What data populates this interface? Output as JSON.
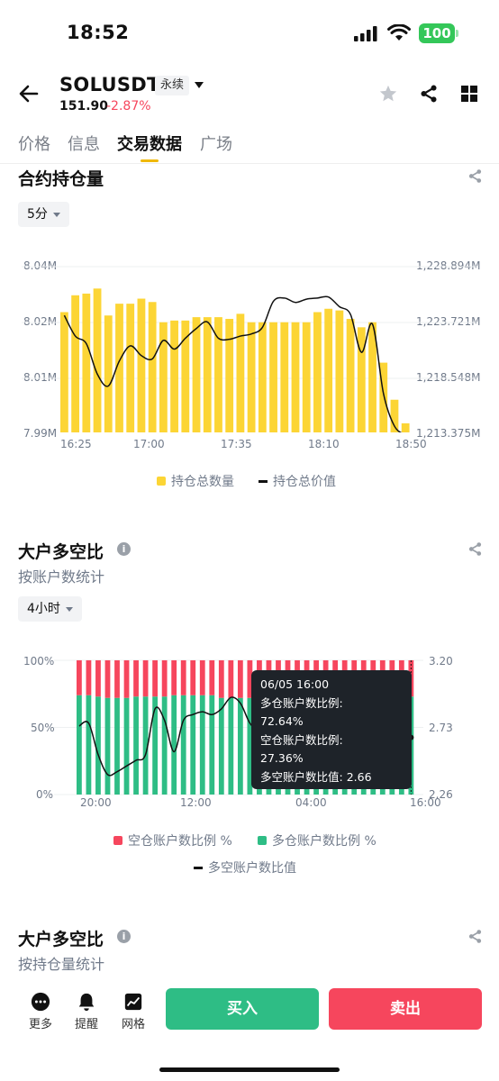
{
  "status": {
    "time": "18:52",
    "battery": "100"
  },
  "header": {
    "symbol": "SOLUSDT",
    "tag": "永续",
    "price": "151.90",
    "change": "-2.87%"
  },
  "tabs": [
    {
      "label": "价格"
    },
    {
      "label": "信息"
    },
    {
      "label": "交易数据",
      "active": true
    },
    {
      "label": "广场"
    }
  ],
  "open_interest": {
    "title": "合约持仓量",
    "interval": "5分",
    "legend": {
      "quantity": "持仓总数量",
      "value": "持仓总价值"
    }
  },
  "top_trader_accounts": {
    "title": "大户多空比",
    "subtitle": "按账户数统计",
    "interval": "4小时",
    "legend": {
      "short": "空仓账户数比例 %",
      "long": "多仓账户数比例 %",
      "ratio": "多空账户数比值"
    },
    "tooltip": {
      "date": "06/05 16:00",
      "long_label": "多仓账户数比例:",
      "long_value": "72.64%",
      "short_label": "空仓账户数比例:",
      "short_value": "27.36%",
      "ratio_label": "多空账户数比值:",
      "ratio_value": "2.66"
    }
  },
  "top_trader_positions": {
    "title": "大户多空比",
    "subtitle": "按持仓量统计"
  },
  "bottom": {
    "more": "更多",
    "alert": "提醒",
    "grid": "网格",
    "buy": "买入",
    "sell": "卖出"
  },
  "colors": {
    "accent": "#f0b90b",
    "bar": "#fcd535",
    "buy": "#2ebd85",
    "sell": "#f6465d",
    "dark": "#1e2329"
  },
  "chart_data": [
    {
      "type": "bar",
      "x_ticks": [
        "16:25",
        "17:00",
        "17:35",
        "18:10",
        "18:50"
      ],
      "y_left_ticks": [
        "8.04M",
        "8.02M",
        "8.01M",
        "7.99M"
      ],
      "y_right_ticks": [
        "1,228.894M",
        "1,223.721M",
        "1,218.548M",
        "1,213.375M"
      ],
      "y_left_range": [
        7.99,
        8.04
      ],
      "y_right_range": [
        1213.375,
        1228.894
      ],
      "series": [
        {
          "name": "持仓总数量",
          "type": "bar",
          "values": [
            8.0265,
            8.0315,
            8.032,
            8.0335,
            8.0255,
            8.029,
            8.029,
            8.0305,
            8.0295,
            8.0235,
            8.024,
            8.024,
            8.025,
            8.025,
            8.025,
            8.0245,
            8.026,
            8.0235,
            8.0235,
            8.0235,
            8.0235,
            8.0235,
            8.0235,
            8.0265,
            8.0275,
            8.027,
            8.0245,
            8.022,
            8.0235,
            8.0115,
            8.0005,
            7.9935
          ]
        },
        {
          "name": "持仓总价值",
          "type": "line",
          "values": [
            1224.4,
            1222.5,
            1221.8,
            1219.0,
            1217.9,
            1220.2,
            1221.6,
            1220.7,
            1220.4,
            1222.1,
            1221.3,
            1222.3,
            1223.2,
            1223.8,
            1222.3,
            1222.2,
            1222.5,
            1222.7,
            1223.3,
            1225.7,
            1226.0,
            1225.6,
            1225.9,
            1226.0,
            1226.1,
            1225.2,
            1224.5,
            1221.0,
            1223.6,
            1217.2,
            1214.2,
            1213.4
          ]
        }
      ]
    },
    {
      "type": "bar",
      "x_ticks": [
        "20:00",
        "12:00",
        "04:00",
        "16:00"
      ],
      "y_left_ticks": [
        "100%",
        "50%",
        "0%"
      ],
      "y_right_ticks": [
        "3.20",
        "2.73",
        "2.26"
      ],
      "y_left_range": [
        0,
        100
      ],
      "y_right_range": [
        2.26,
        3.2
      ],
      "series": [
        {
          "name": "多仓账户数比例 %",
          "type": "stacked-bar",
          "values": [
            74,
            74,
            73,
            72,
            72,
            72,
            73,
            73,
            73,
            73,
            74,
            74,
            74,
            74,
            74,
            72,
            72,
            72,
            72,
            72,
            72,
            72,
            72,
            72,
            72,
            72,
            72,
            72,
            72,
            72,
            72,
            72,
            72,
            72,
            72,
            73
          ]
        },
        {
          "name": "空仓账户数比例 %",
          "type": "stacked-bar",
          "values": [
            26,
            26,
            27,
            28,
            28,
            28,
            27,
            27,
            27,
            27,
            26,
            26,
            26,
            26,
            26,
            28,
            28,
            28,
            28,
            28,
            28,
            28,
            28,
            28,
            28,
            28,
            28,
            28,
            28,
            28,
            28,
            28,
            28,
            28,
            28,
            27
          ]
        },
        {
          "name": "多空账户数比值",
          "type": "line",
          "values": [
            2.74,
            2.76,
            2.54,
            2.4,
            2.42,
            2.46,
            2.5,
            2.54,
            2.86,
            2.78,
            2.56,
            2.78,
            2.82,
            2.84,
            2.82,
            2.86,
            2.94,
            2.9,
            2.76,
            2.7,
            2.7,
            2.74,
            2.92,
            2.98,
            3.0,
            3.01,
            2.98,
            2.93,
            2.75,
            2.64,
            2.58,
            2.56,
            2.54,
            2.58,
            2.62,
            2.66
          ]
        }
      ]
    }
  ]
}
